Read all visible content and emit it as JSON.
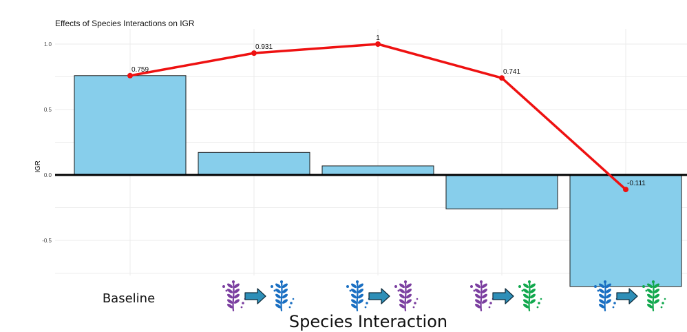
{
  "chart_data": {
    "type": "bar",
    "title": "Effects of Species Interactions on IGR",
    "xlabel": "Species Interaction",
    "ylabel": "IGR",
    "ylim": [
      -0.85,
      1.0
    ],
    "yticks": [
      1.0,
      0.5,
      0.0,
      -0.5
    ],
    "ytick_labels": [
      "1.0",
      "0.5",
      "0.0",
      "-0.5"
    ],
    "grid": true,
    "categories": [
      {
        "label": "Baseline",
        "icons": []
      },
      {
        "label": "",
        "icons": [
          "purple-seaweed-icon",
          "arrow-icon",
          "blue-seaweed-icon"
        ]
      },
      {
        "label": "",
        "icons": [
          "blue-seaweed-icon",
          "arrow-icon",
          "purple-seaweed-icon"
        ]
      },
      {
        "label": "",
        "icons": [
          "purple-seaweed-icon",
          "arrow-icon",
          "green-seaweed-icon"
        ]
      },
      {
        "label": "",
        "icons": [
          "blue-seaweed-icon",
          "arrow-icon",
          "green-seaweed-icon"
        ]
      }
    ],
    "bar_values": [
      0.759,
      0.172,
      0.069,
      -0.259,
      -0.852
    ],
    "line_values": [
      0.759,
      0.931,
      1,
      0.741,
      -0.111
    ],
    "line_labels": [
      "0.759",
      "0.931",
      "1",
      "0.741",
      "-0.111"
    ],
    "colors": {
      "bar_fill": "#87CEEB",
      "bar_stroke": "#1a1a1a",
      "line": "#ee1111",
      "purple": "#7b3fa0",
      "blue": "#1a6fc2",
      "green": "#12a84e",
      "arrow": "#2e8fb8"
    }
  }
}
